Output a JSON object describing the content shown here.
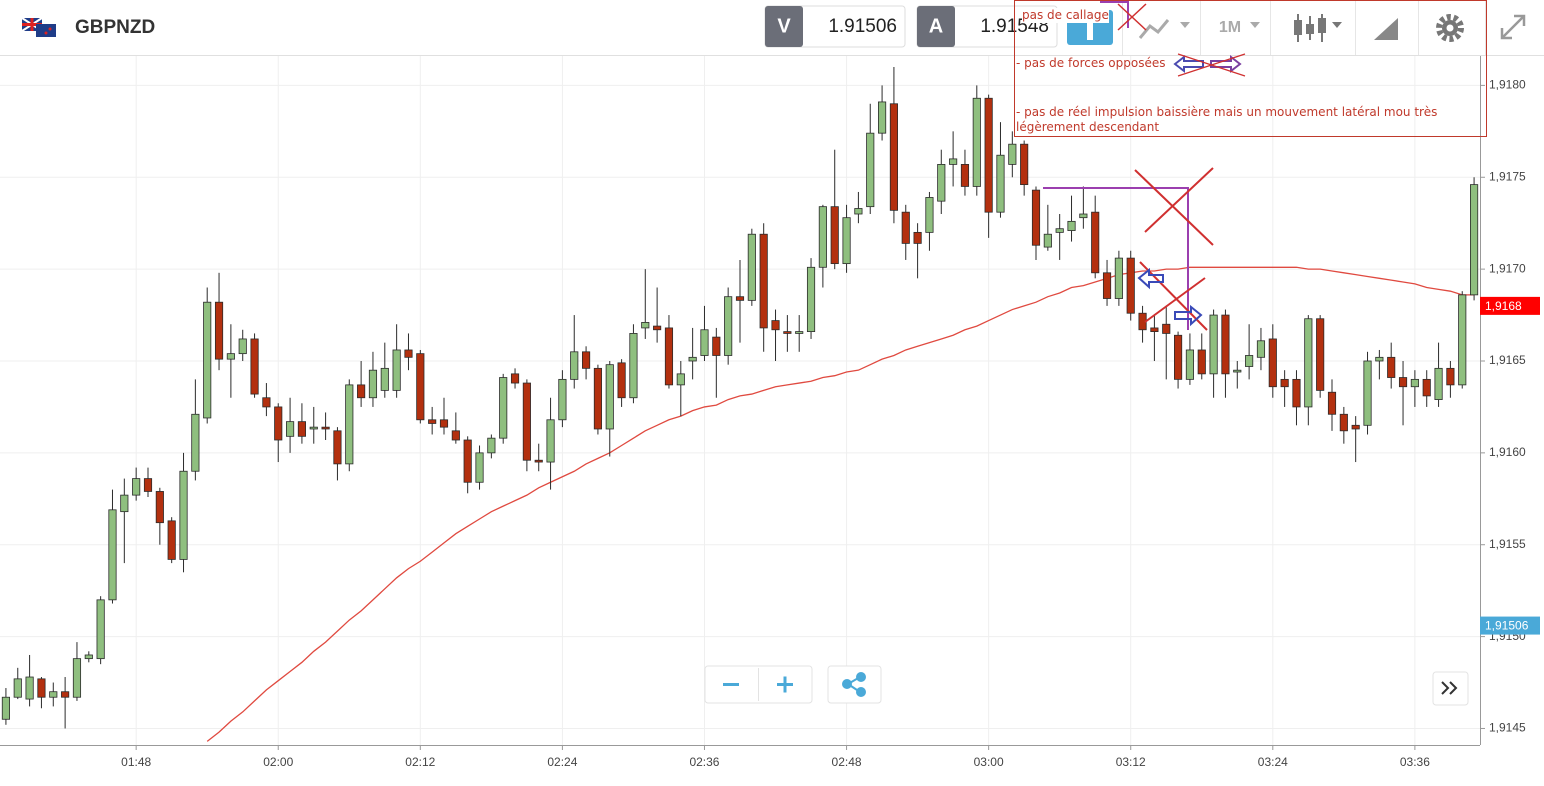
{
  "header": {
    "symbol": "GBPNZD",
    "sell_label": "V",
    "sell_price": "1.91506",
    "buy_label": "A",
    "buy_price": "1.91548",
    "timeframe": "1M"
  },
  "annotations": [
    "pas de callage",
    "- pas de forces opposées",
    "- pas de réel impulsion baissière mais un mouvement latéral mou très légèrement descendant"
  ],
  "chart_data": {
    "type": "candlestick",
    "categories": [
      "01:37",
      "01:38",
      "01:39",
      "01:40",
      "01:41",
      "01:42",
      "01:43",
      "01:44",
      "01:45",
      "01:46",
      "01:47",
      "01:48",
      "01:49",
      "01:50",
      "01:51",
      "01:52",
      "01:53",
      "01:54",
      "01:55",
      "01:56",
      "01:57",
      "01:58",
      "01:59",
      "02:00",
      "02:01",
      "02:02",
      "02:03",
      "02:04",
      "02:05",
      "02:06",
      "02:07",
      "02:08",
      "02:09",
      "02:10",
      "02:11",
      "02:12",
      "02:13",
      "02:14",
      "02:15",
      "02:16",
      "02:17",
      "02:18",
      "02:19",
      "02:20",
      "02:21",
      "02:22",
      "02:23",
      "02:24",
      "02:25",
      "02:26",
      "02:27",
      "02:28",
      "02:29",
      "02:30",
      "02:31",
      "02:32",
      "02:33",
      "02:34",
      "02:35",
      "02:36",
      "02:37",
      "02:38",
      "02:39",
      "02:40",
      "02:41",
      "02:42",
      "02:43",
      "02:44",
      "02:45",
      "02:46",
      "02:47",
      "02:48",
      "02:49",
      "02:50",
      "02:51",
      "02:52",
      "02:53",
      "02:54",
      "02:55",
      "02:56",
      "02:57",
      "02:58",
      "02:59",
      "03:00",
      "03:01",
      "03:02",
      "03:03",
      "03:04",
      "03:05",
      "03:06",
      "03:07",
      "03:08",
      "03:09",
      "03:10",
      "03:11",
      "03:12",
      "03:13",
      "03:14",
      "03:15",
      "03:16",
      "03:17",
      "03:18",
      "03:19",
      "03:20",
      "03:21",
      "03:22",
      "03:23",
      "03:24",
      "03:25",
      "03:26",
      "03:27",
      "03:28",
      "03:29",
      "03:30",
      "03:31",
      "03:32",
      "03:33",
      "03:34",
      "03:35",
      "03:36",
      "03:37",
      "03:38",
      "03:39",
      "03:40",
      "03:41"
    ],
    "open": [
      1.91455,
      1.91467,
      1.91466,
      1.91477,
      1.91467,
      1.9147,
      1.91467,
      1.91488,
      1.91488,
      1.9152,
      1.91568,
      1.91577,
      1.91586,
      1.91579,
      1.91563,
      1.91542,
      1.9159,
      1.91619,
      1.91682,
      1.91651,
      1.91654,
      1.91662,
      1.9163,
      1.91625,
      1.91609,
      1.91617,
      1.91613,
      1.91614,
      1.91612,
      1.91594,
      1.91637,
      1.9163,
      1.91634,
      1.91634,
      1.91656,
      1.91654,
      1.91618,
      1.91618,
      1.91612,
      1.91607,
      1.91584,
      1.916,
      1.91608,
      1.91643,
      1.91638,
      1.91596,
      1.91595,
      1.91618,
      1.9164,
      1.91655,
      1.91646,
      1.91613,
      1.91649,
      1.9163,
      1.91668,
      1.91669,
      1.91668,
      1.91637,
      1.9165,
      1.91653,
      1.91663,
      1.91653,
      1.91685,
      1.91683,
      1.91719,
      1.91672,
      1.91666,
      1.91665,
      1.91666,
      1.91701,
      1.91734,
      1.91703,
      1.9173,
      1.91734,
      1.91774,
      1.9179,
      1.91731,
      1.9172,
      1.9172,
      1.91737,
      1.91757,
      1.91757,
      1.91745,
      1.91793,
      1.91731,
      1.91757,
      1.91768,
      1.91743,
      1.91712,
      1.9172,
      1.91721,
      1.91728,
      1.91731,
      1.91698,
      1.91684,
      1.91706,
      1.91676,
      1.91668,
      1.9167,
      1.91664,
      1.9164,
      1.91656,
      1.91643,
      1.91675,
      1.91644,
      1.91647,
      1.91652,
      1.91662,
      1.9164,
      1.9164,
      1.91625,
      1.91673,
      1.91633,
      1.91621,
      1.91615,
      1.91615,
      1.9165,
      1.91652,
      1.91641,
      1.91636,
      1.9164,
      1.91629,
      1.91646,
      1.91637,
      1.91686
    ],
    "high": [
      1.91472,
      1.91483,
      1.9149,
      1.91478,
      1.91475,
      1.91478,
      1.91497,
      1.91492,
      1.91522,
      1.9158,
      1.91586,
      1.91592,
      1.91592,
      1.91581,
      1.91565,
      1.916,
      1.9164,
      1.9169,
      1.91698,
      1.9167,
      1.91667,
      1.91665,
      1.91638,
      1.91627,
      1.9163,
      1.91627,
      1.91625,
      1.91622,
      1.91614,
      1.9164,
      1.9165,
      1.91655,
      1.9166,
      1.9167,
      1.91665,
      1.91656,
      1.91625,
      1.9163,
      1.91622,
      1.91609,
      1.91604,
      1.9161,
      1.91643,
      1.91646,
      1.9164,
      1.91605,
      1.9163,
      1.91645,
      1.91675,
      1.91658,
      1.91648,
      1.9165,
      1.91651,
      1.9167,
      1.917,
      1.9169,
      1.91675,
      1.9165,
      1.91668,
      1.9168,
      1.91668,
      1.9169,
      1.91705,
      1.91722,
      1.91725,
      1.91678,
      1.91675,
      1.91675,
      1.91706,
      1.91735,
      1.91765,
      1.91735,
      1.91742,
      1.9179,
      1.918,
      1.9181,
      1.91735,
      1.91725,
      1.91742,
      1.91765,
      1.91775,
      1.91765,
      1.918,
      1.91795,
      1.9178,
      1.91775,
      1.9177,
      1.91745,
      1.91735,
      1.9173,
      1.9174,
      1.91745,
      1.9174,
      1.91705,
      1.9171,
      1.9171,
      1.9168,
      1.91675,
      1.9168,
      1.91666,
      1.91665,
      1.91665,
      1.91678,
      1.91678,
      1.9165,
      1.9167,
      1.91668,
      1.9167,
      1.91645,
      1.91645,
      1.91675,
      1.91675,
      1.9164,
      1.91625,
      1.9162,
      1.91655,
      1.91656,
      1.9166,
      1.9165,
      1.91645,
      1.91645,
      1.9166,
      1.9165,
      1.91688,
      1.9175
    ],
    "low": [
      1.91452,
      1.91466,
      1.91462,
      1.91461,
      1.91462,
      1.9145,
      1.91465,
      1.91486,
      1.91485,
      1.91518,
      1.9154,
      1.91574,
      1.91576,
      1.9155,
      1.9154,
      1.91535,
      1.91585,
      1.91616,
      1.91645,
      1.9163,
      1.9165,
      1.9163,
      1.9162,
      1.91595,
      1.916,
      1.91605,
      1.91605,
      1.91607,
      1.91585,
      1.9159,
      1.91625,
      1.91625,
      1.9163,
      1.9163,
      1.91645,
      1.91616,
      1.9161,
      1.9161,
      1.91605,
      1.91578,
      1.9158,
      1.91597,
      1.91605,
      1.91635,
      1.9159,
      1.9159,
      1.9158,
      1.91614,
      1.91635,
      1.9164,
      1.9161,
      1.91598,
      1.91625,
      1.91627,
      1.91662,
      1.9166,
      1.91635,
      1.9162,
      1.9164,
      1.9165,
      1.9163,
      1.91648,
      1.9166,
      1.9168,
      1.91655,
      1.9165,
      1.91655,
      1.91655,
      1.91662,
      1.9169,
      1.917,
      1.91698,
      1.91725,
      1.9173,
      1.9177,
      1.91725,
      1.91705,
      1.91695,
      1.9171,
      1.9173,
      1.91745,
      1.9174,
      1.9174,
      1.91717,
      1.91728,
      1.9175,
      1.9174,
      1.91705,
      1.9171,
      1.91705,
      1.91715,
      1.91722,
      1.91695,
      1.9168,
      1.9168,
      1.91672,
      1.9166,
      1.9165,
      1.9164,
      1.91635,
      1.91637,
      1.9164,
      1.9163,
      1.9163,
      1.91635,
      1.9164,
      1.91645,
      1.9163,
      1.91625,
      1.91615,
      1.91615,
      1.9163,
      1.91612,
      1.91605,
      1.91595,
      1.9161,
      1.9164,
      1.91635,
      1.91615,
      1.91625,
      1.91625,
      1.91625,
      1.9163,
      1.91635,
      1.91683
    ],
    "close": [
      1.91467,
      1.91477,
      1.91478,
      1.91467,
      1.9147,
      1.91467,
      1.91488,
      1.9149,
      1.9152,
      1.91569,
      1.91577,
      1.91586,
      1.91579,
      1.91562,
      1.91542,
      1.9159,
      1.91621,
      1.91682,
      1.91651,
      1.91654,
      1.91662,
      1.91632,
      1.91625,
      1.91607,
      1.91617,
      1.91609,
      1.91614,
      1.91613,
      1.91594,
      1.91637,
      1.9163,
      1.91645,
      1.91646,
      1.91656,
      1.91652,
      1.91618,
      1.91616,
      1.91614,
      1.91607,
      1.91584,
      1.916,
      1.91608,
      1.91641,
      1.91638,
      1.91596,
      1.91595,
      1.91618,
      1.9164,
      1.91655,
      1.91646,
      1.91613,
      1.91648,
      1.9163,
      1.91665,
      1.91671,
      1.91667,
      1.91637,
      1.91643,
      1.91652,
      1.91667,
      1.91653,
      1.91685,
      1.91683,
      1.91719,
      1.91668,
      1.91667,
      1.91665,
      1.91666,
      1.91701,
      1.91734,
      1.91703,
      1.91728,
      1.91733,
      1.91774,
      1.91791,
      1.91732,
      1.91714,
      1.91714,
      1.91739,
      1.91757,
      1.9176,
      1.91745,
      1.91793,
      1.91731,
      1.91762,
      1.91768,
      1.91746,
      1.91713,
      1.91719,
      1.91722,
      1.91726,
      1.9173,
      1.91698,
      1.91684,
      1.91706,
      1.91676,
      1.91667,
      1.91666,
      1.91665,
      1.9164,
      1.91656,
      1.91643,
      1.91675,
      1.91643,
      1.91645,
      1.91653,
      1.91661,
      1.91636,
      1.91636,
      1.91625,
      1.91673,
      1.91634,
      1.91621,
      1.91612,
      1.91613,
      1.9165,
      1.91652,
      1.91641,
      1.91636,
      1.9164,
      1.91631,
      1.91646,
      1.91637,
      1.91686,
      1.91746
    ],
    "up_color": "#8fbf7f",
    "down_color": "#b3300f",
    "outline_color": "#2b2b2b",
    "moving_average": {
      "color": "#e04a40",
      "values": [
        null,
        null,
        null,
        null,
        null,
        null,
        null,
        null,
        null,
        null,
        null,
        null,
        null,
        null,
        null,
        null,
        null,
        1.91443,
        1.91448,
        1.91454,
        1.91459,
        1.91465,
        1.91471,
        1.91476,
        1.91481,
        1.91486,
        1.91492,
        1.91497,
        1.91503,
        1.91509,
        1.91514,
        1.9152,
        1.91526,
        1.91532,
        1.91537,
        1.91541,
        1.91546,
        1.91551,
        1.91556,
        1.9156,
        1.91564,
        1.91568,
        1.91571,
        1.91574,
        1.91577,
        1.91581,
        1.91584,
        1.91587,
        1.9159,
        1.91594,
        1.91597,
        1.916,
        1.91604,
        1.91608,
        1.91612,
        1.91615,
        1.91618,
        1.9162,
        1.91623,
        1.91625,
        1.91626,
        1.91629,
        1.91631,
        1.91632,
        1.91634,
        1.91636,
        1.91637,
        1.91638,
        1.91639,
        1.91641,
        1.91642,
        1.91644,
        1.91645,
        1.91648,
        1.91651,
        1.91653,
        1.91656,
        1.91658,
        1.9166,
        1.91662,
        1.91664,
        1.91667,
        1.91669,
        1.91672,
        1.91675,
        1.91678,
        1.9168,
        1.91682,
        1.91685,
        1.91687,
        1.9169,
        1.91691,
        1.91693,
        1.91695,
        1.91697,
        1.91698,
        1.91699,
        1.91699,
        1.917,
        1.917,
        1.91701,
        1.91701,
        1.91701,
        1.91701,
        1.91701,
        1.91701,
        1.91701,
        1.91701,
        1.91701,
        1.91701,
        1.917,
        1.917,
        1.91699,
        1.91698,
        1.91697,
        1.91696,
        1.91695,
        1.91694,
        1.91693,
        1.91692,
        1.9169,
        1.91689,
        1.91688,
        1.91686,
        1.91686
      ]
    },
    "ylim": [
      1.91441,
      1.91816
    ],
    "yticks": [
      {
        "value": 1.9145,
        "label": "1,9145"
      },
      {
        "value": 1.915,
        "label": "1,9150"
      },
      {
        "value": 1.9155,
        "label": "1,9155"
      },
      {
        "value": 1.916,
        "label": "1,9160"
      },
      {
        "value": 1.9165,
        "label": "1,9165"
      },
      {
        "value": 1.917,
        "label": "1,9170"
      },
      {
        "value": 1.9175,
        "label": "1,9175"
      },
      {
        "value": 1.918,
        "label": "1,9180"
      }
    ],
    "xticks": [
      "01:48",
      "02:00",
      "02:12",
      "02:24",
      "02:36",
      "02:48",
      "03:00",
      "03:12",
      "03:24",
      "03:36"
    ],
    "grid": true,
    "markers": [
      {
        "value": 1.9168,
        "label": "1,9168",
        "color": "#ff0000"
      },
      {
        "value": 1.91506,
        "label": "1,91506",
        "color": "#4aa9d8"
      }
    ]
  }
}
